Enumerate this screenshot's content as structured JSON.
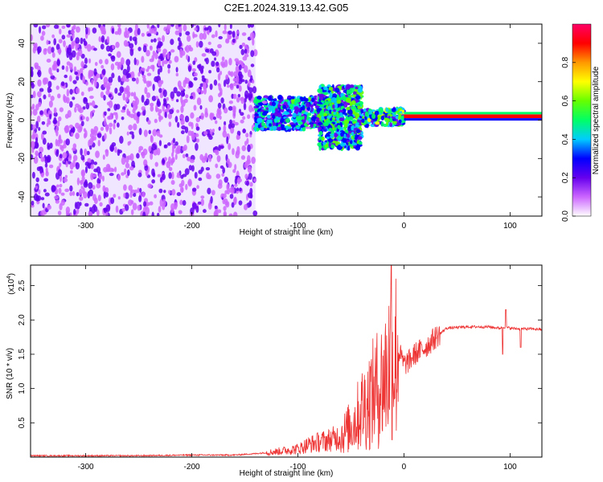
{
  "title": "C2E1.2024.319.13.42.G05",
  "chart_data": [
    {
      "type": "heatmap",
      "xlabel": "Height of straight line (km)",
      "ylabel": "Frequency (Hz)",
      "xlim": [
        -352,
        130
      ],
      "ylim": [
        -50,
        50
      ],
      "xticks": [
        -300,
        -200,
        -100,
        0,
        100
      ],
      "yticks": [
        -40,
        -20,
        0,
        20,
        40
      ],
      "colorbar": {
        "label": "Normalized spectral amplitude",
        "range": [
          0,
          1
        ],
        "ticks": [
          "0.0",
          "0.2",
          "0.4",
          "0.6",
          "0.8"
        ],
        "colors": [
          "#ffffff",
          "#cc66ff",
          "#6600ee",
          "#0000ff",
          "#00ccff",
          "#00ff66",
          "#66ff00",
          "#ffff00",
          "#ff9900",
          "#ff0000",
          "#ff0066"
        ]
      },
      "regions": [
        {
          "x": [
            -352,
            -140
          ],
          "freq": [
            -50,
            50
          ],
          "amplitude": 0.15
        },
        {
          "x": [
            -140,
            -60
          ],
          "freq": [
            -5,
            12
          ],
          "amplitude": 0.35
        },
        {
          "x": [
            -80,
            -40
          ],
          "freq": [
            -15,
            18
          ],
          "amplitude": 0.4
        },
        {
          "x": [
            -40,
            0
          ],
          "freq": [
            -3,
            6
          ],
          "amplitude": 0.45
        },
        {
          "x": [
            0,
            130
          ],
          "freq": [
            1,
            3
          ],
          "amplitude": 0.95
        }
      ]
    },
    {
      "type": "line",
      "xlabel": "Height of straight line (km)",
      "ylabel": "SNR (10 * v/v)",
      "scale_label": "(x10",
      "scale_exp": "4",
      "scale_close": ")",
      "xlim": [
        -352,
        130
      ],
      "ylim": [
        0,
        2.8
      ],
      "xticks": [
        -300,
        -200,
        -100,
        0,
        100
      ],
      "yticks": [
        "0.5",
        "1.0",
        "1.5",
        "2.0",
        "2.5"
      ],
      "series": [
        {
          "color": "#ee3333",
          "x": [
            -352,
            -300,
            -250,
            -200,
            -160,
            -140,
            -120,
            -100,
            -90,
            -80,
            -70,
            -60,
            -50,
            -45,
            -40,
            -35,
            -30,
            -25,
            -20,
            -15,
            -12,
            -10,
            -8,
            -5,
            0,
            5,
            10,
            20,
            30,
            40,
            60,
            80,
            90,
            95,
            100,
            110,
            120,
            130
          ],
          "y": [
            0.02,
            0.02,
            0.02,
            0.03,
            0.03,
            0.05,
            0.08,
            0.12,
            0.18,
            0.22,
            0.25,
            0.3,
            0.45,
            0.55,
            0.7,
            0.8,
            0.9,
            1.0,
            1.1,
            1.3,
            1.6,
            1.4,
            1.5,
            1.55,
            1.35,
            1.4,
            1.5,
            1.6,
            1.75,
            1.88,
            1.9,
            1.9,
            1.88,
            1.9,
            1.88,
            1.87,
            1.87,
            1.86
          ]
        }
      ]
    }
  ]
}
